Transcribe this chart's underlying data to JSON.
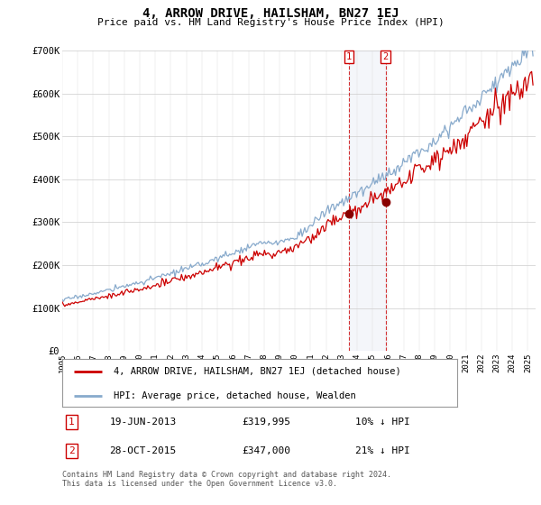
{
  "title": "4, ARROW DRIVE, HAILSHAM, BN27 1EJ",
  "subtitle": "Price paid vs. HM Land Registry's House Price Index (HPI)",
  "ylim": [
    0,
    700000
  ],
  "yticks": [
    0,
    100000,
    200000,
    300000,
    400000,
    500000,
    600000,
    700000
  ],
  "ytick_labels": [
    "£0",
    "£100K",
    "£200K",
    "£300K",
    "£400K",
    "£500K",
    "£600K",
    "£700K"
  ],
  "xlim_start": 1995.0,
  "xlim_end": 2025.5,
  "property_color": "#cc0000",
  "hpi_color": "#88aacc",
  "transaction_1": {
    "date_num": 2013.47,
    "price": 319995,
    "label": "1",
    "date_str": "19-JUN-2013",
    "price_str": "£319,995",
    "pct_str": "10% ↓ HPI"
  },
  "transaction_2": {
    "date_num": 2015.83,
    "price": 347000,
    "label": "2",
    "date_str": "28-OCT-2015",
    "price_str": "£347,000",
    "pct_str": "21% ↓ HPI"
  },
  "legend_label_property": "4, ARROW DRIVE, HAILSHAM, BN27 1EJ (detached house)",
  "legend_label_hpi": "HPI: Average price, detached house, Wealden",
  "footer": "Contains HM Land Registry data © Crown copyright and database right 2024.\nThis data is licensed under the Open Government Licence v3.0.",
  "background_color": "#ffffff"
}
